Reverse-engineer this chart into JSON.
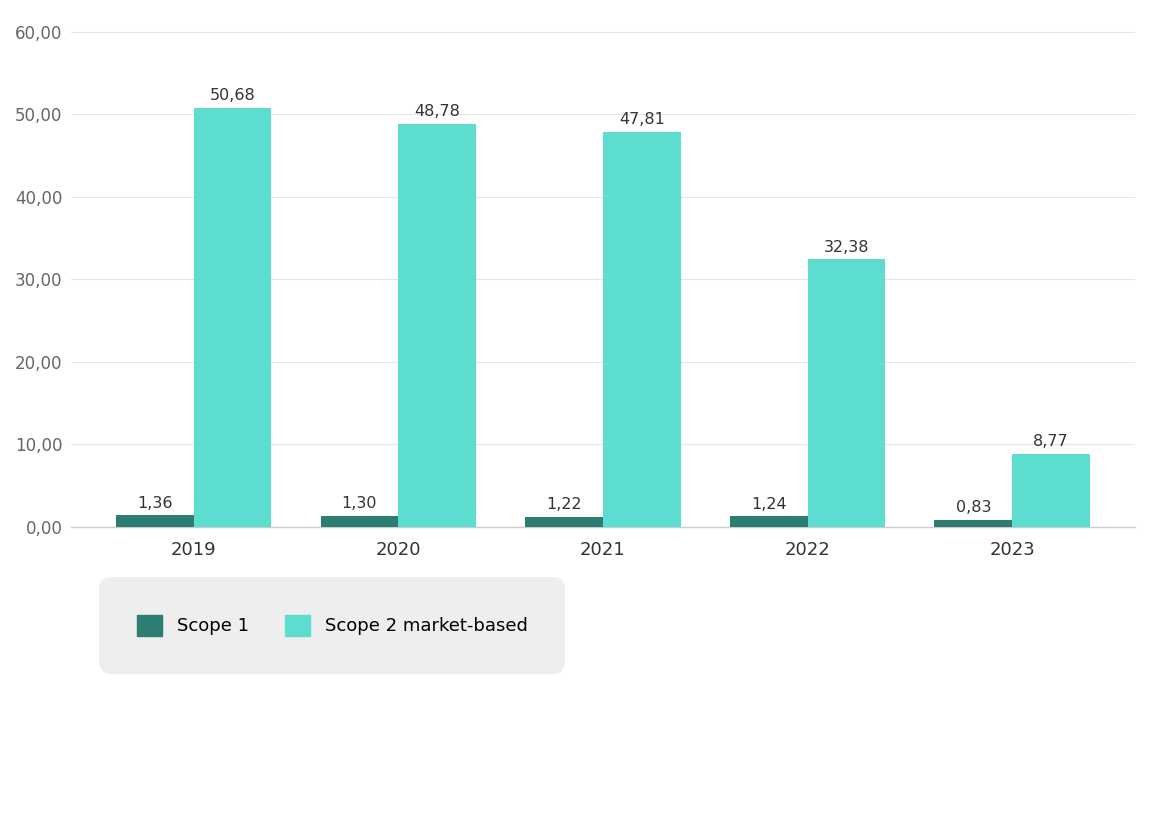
{
  "years": [
    "2019",
    "2020",
    "2021",
    "2022",
    "2023"
  ],
  "scope1": [
    1.36,
    1.3,
    1.22,
    1.24,
    0.83
  ],
  "scope2": [
    50.68,
    48.78,
    47.81,
    32.38,
    8.77
  ],
  "scope1_color": "#2e7d72",
  "scope2_color": "#5dddd0",
  "background_color": "#ffffff",
  "ylim": [
    0,
    62
  ],
  "yticks": [
    0,
    10,
    20,
    30,
    40,
    50,
    60
  ],
  "ytick_labels": [
    "0,00",
    "10,00",
    "20,00",
    "30,00",
    "40,00",
    "50,00",
    "60,00"
  ],
  "bar_width": 0.38,
  "label_scope1": "Scope 1",
  "label_scope2": "Scope 2 market-based",
  "legend_bg": "#eeeeee",
  "annotation_fontsize": 11.5,
  "tick_fontsize": 12,
  "legend_fontsize": 13
}
